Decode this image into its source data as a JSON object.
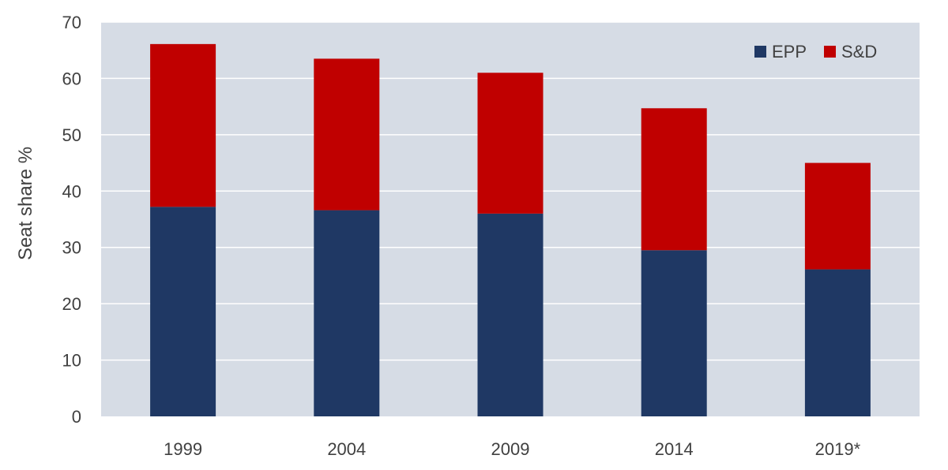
{
  "chart_data": {
    "type": "bar",
    "stacked": true,
    "categories": [
      "1999",
      "2004",
      "2009",
      "2014",
      "2019*"
    ],
    "series": [
      {
        "name": "EPP",
        "values": [
          37.2,
          36.6,
          36.0,
          29.5,
          26.1
        ],
        "color": "#1f3864"
      },
      {
        "name": "S&D",
        "values": [
          28.9,
          26.9,
          25.0,
          25.2,
          18.9
        ],
        "color": "#c00000"
      }
    ],
    "title": "",
    "xlabel": "",
    "ylabel": "Seat share %",
    "ylim": [
      0,
      70
    ],
    "yticks": [
      0,
      10,
      20,
      30,
      40,
      50,
      60,
      70
    ],
    "grid": true,
    "legend_position": "top-right",
    "plot_background": "#d6dce5",
    "gridline_color": "#ffffff"
  }
}
